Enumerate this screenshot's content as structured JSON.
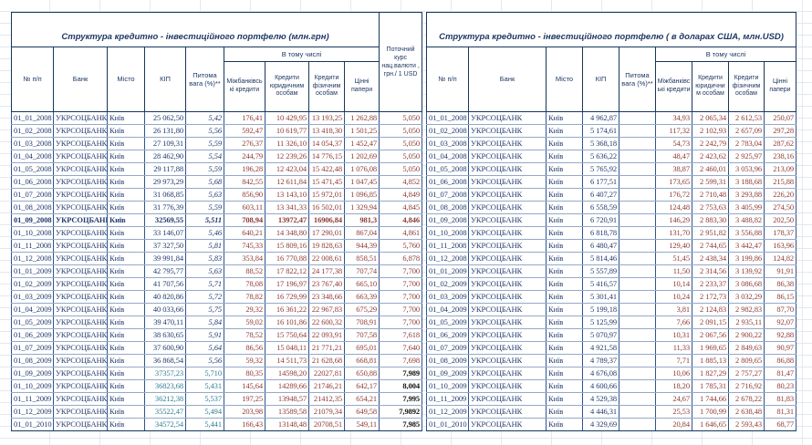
{
  "colors": {
    "text_navy": "#223A6E",
    "text_maroon": "#8E3B35",
    "text_teal": "#2E7F96",
    "border_dark": "#16365C",
    "border_inner": "#2F548E",
    "gridline": "#E3E8F0"
  },
  "uah_table": {
    "title": "Структура кредитно - інвестиційного портфелю (млн.грн)",
    "group_header": "В тому числі",
    "col_headers": [
      "№ п/п",
      "Банк",
      "Місто",
      "КІП",
      "Питома вага (%)**",
      "Міжбанківські кредити",
      "Кредити юридичним особам",
      "Кредити фізичним особам",
      "Цінні папери",
      "Поточний курс нац.валюти , грн./ 1 USD"
    ],
    "rows": [
      {
        "c": [
          "01_01_2008",
          "УКРСОЦБАНК",
          "Київ",
          "25 062,50",
          "5,42",
          "176,41",
          "10 429,95",
          "13 193,25",
          "1 262,88",
          "5,050"
        ],
        "style": "n"
      },
      {
        "c": [
          "01_02_2008",
          "УКРСОЦБАНК",
          "Київ",
          "26 131,80",
          "5,56",
          "592,47",
          "10 619,77",
          "13 418,30",
          "1 501,25",
          "5,050"
        ],
        "style": "n"
      },
      {
        "c": [
          "01_03_2008",
          "УКРСОЦБАНК",
          "Київ",
          "27 109,31",
          "5,59",
          "276,37",
          "11 326,10",
          "14 054,37",
          "1 452,47",
          "5,050"
        ],
        "style": "n"
      },
      {
        "c": [
          "01_04_2008",
          "УКРСОЦБАНК",
          "Київ",
          "28 462,90",
          "5,54",
          "244,79",
          "12 239,26",
          "14 776,15",
          "1 202,69",
          "5,050"
        ],
        "style": "n"
      },
      {
        "c": [
          "01_05_2008",
          "УКРСОЦБАНК",
          "Київ",
          "29 117,88",
          "5,59",
          "196,28",
          "12 423,04",
          "15 422,48",
          "1 076,08",
          "5,050"
        ],
        "style": "n"
      },
      {
        "c": [
          "01_06_2008",
          "УКРСОЦБАНК",
          "Київ",
          "29 973,29",
          "5,68",
          "842,55",
          "12 611,84",
          "15 471,45",
          "1 047,45",
          "4,852"
        ],
        "style": "n"
      },
      {
        "c": [
          "01_07_2008",
          "УКРСОЦБАНК",
          "Київ",
          "31 068,85",
          "5,63",
          "856,90",
          "13 143,10",
          "15 972,01",
          "1 096,85",
          "4,849"
        ],
        "style": "n"
      },
      {
        "c": [
          "01_08_2008",
          "УКРСОЦБАНК",
          "Київ",
          "31 776,39",
          "5,59",
          "603,11",
          "13 341,33",
          "16 502,01",
          "1 329,94",
          "4,845"
        ],
        "style": "n"
      },
      {
        "c": [
          "01_09_2008",
          "УКРСОЦБАНК",
          "Київ",
          "32569,55",
          "5,511",
          "708,94",
          "13972,47",
          "16906,84",
          "981,3",
          "4,846"
        ],
        "style": "bold"
      },
      {
        "c": [
          "01_10_2008",
          "УКРСОЦБАНК",
          "Київ",
          "33 146,07",
          "5,46",
          "640,21",
          "14 348,80",
          "17 290,01",
          "867,04",
          "4,861"
        ],
        "style": "n"
      },
      {
        "c": [
          "01_11_2008",
          "УКРСОЦБАНК",
          "Київ",
          "37 327,50",
          "5,81",
          "745,33",
          "15 809,16",
          "19 828,63",
          "944,39",
          "5,760"
        ],
        "style": "n"
      },
      {
        "c": [
          "01_12_2008",
          "УКРСОЦБАНК",
          "Київ",
          "39 991,84",
          "5,83",
          "353,84",
          "16 770,88",
          "22 008,61",
          "858,51",
          "6,878"
        ],
        "style": "n"
      },
      {
        "c": [
          "01_01_2009",
          "УКРСОЦБАНК",
          "Київ",
          "42 795,77",
          "5,63",
          "88,52",
          "17 822,12",
          "24 177,38",
          "707,74",
          "7,700"
        ],
        "style": "n"
      },
      {
        "c": [
          "01_02_2009",
          "УКРСОЦБАНК",
          "Київ",
          "41 707,56",
          "5,71",
          "78,08",
          "17 196,97",
          "23 767,40",
          "665,10",
          "7,700"
        ],
        "style": "n"
      },
      {
        "c": [
          "01_03_2009",
          "УКРСОЦБАНК",
          "Київ",
          "40 820,86",
          "5,72",
          "78,82",
          "16 729,99",
          "23 348,66",
          "663,39",
          "7,700"
        ],
        "style": "n"
      },
      {
        "c": [
          "01_04_2009",
          "УКРСОЦБАНК",
          "Київ",
          "40 033,66",
          "5,75",
          "29,32",
          "16 361,22",
          "22 967,83",
          "675,29",
          "7,700"
        ],
        "style": "n"
      },
      {
        "c": [
          "01_05_2009",
          "УКРСОЦБАНК",
          "Київ",
          "39 470,11",
          "5,84",
          "59,02",
          "16 101,86",
          "22 600,32",
          "708,91",
          "7,700"
        ],
        "style": "n"
      },
      {
        "c": [
          "01_06_2009",
          "УКРСОЦБАНК",
          "Київ",
          "38 630,65",
          "5,91",
          "78,52",
          "15 750,64",
          "22 093,91",
          "707,58",
          "7,618"
        ],
        "style": "n"
      },
      {
        "c": [
          "01_07_2009",
          "УКРСОЦБАНК",
          "Київ",
          "37 600,90",
          "5,64",
          "86,56",
          "15 048,11",
          "21 771,21",
          "695,01",
          "7,640"
        ],
        "style": "n"
      },
      {
        "c": [
          "01_08_2009",
          "УКРСОЦБАНК",
          "Київ",
          "36 868,54",
          "5,56",
          "59,32",
          "14 511,73",
          "21 628,68",
          "668,81",
          "7,698"
        ],
        "style": "n"
      },
      {
        "c": [
          "01_09_2009",
          "УКРСОЦБАНК",
          "Київ",
          "37357,23",
          "5,710",
          "80,35",
          "14598,20",
          "22027,81",
          "650,88",
          "7,989"
        ],
        "style": "teal"
      },
      {
        "c": [
          "01_10_2009",
          "УКРСОЦБАНК",
          "Київ",
          "36823,68",
          "5,431",
          "145,64",
          "14289,66",
          "21746,21",
          "642,17",
          "8,004"
        ],
        "style": "teal"
      },
      {
        "c": [
          "01_11_2009",
          "УКРСОЦБАНК",
          "Київ",
          "36212,38",
          "5,537",
          "197,25",
          "13948,57",
          "21412,35",
          "654,21",
          "7,995"
        ],
        "style": "teal"
      },
      {
        "c": [
          "01_12_2009",
          "УКРСОЦБАНК",
          "Київ",
          "35522,47",
          "5,494",
          "203,98",
          "13589,58",
          "21079,34",
          "649,58",
          "7,9892"
        ],
        "style": "teal"
      },
      {
        "c": [
          "01_01_2010",
          "УКРСОЦБАНК",
          "Київ",
          "34572,54",
          "5,441",
          "166,43",
          "13148,48",
          "20708,51",
          "549,11",
          "7,985"
        ],
        "style": "teal"
      }
    ]
  },
  "usd_table": {
    "title": "Структура кредитно - інвестиційного портфелю ( в доларах США, млн.USD)",
    "group_header": "В тому числі",
    "col_headers": [
      "№ п/п",
      "Банк",
      "Місто",
      "КІП",
      "Питома вага (%)**",
      "Міжбанківські кредити",
      "Кредити юридичним особам",
      "Кредити фізичним особам",
      "Цінні папери"
    ],
    "rows": [
      {
        "c": [
          "01_01_2008",
          "УКРСОЦБАНК",
          "Київ",
          "4 962,87",
          "",
          "34,93",
          "2 065,34",
          "2 612,53",
          "250,07"
        ],
        "style": "n"
      },
      {
        "c": [
          "01_02_2008",
          "УКРСОЦБАНК",
          "Київ",
          "5 174,61",
          "",
          "117,32",
          "2 102,93",
          "2 657,09",
          "297,28"
        ],
        "style": "n"
      },
      {
        "c": [
          "01_03_2008",
          "УКРСОЦБАНК",
          "Київ",
          "5 368,18",
          "",
          "54,73",
          "2 242,79",
          "2 783,04",
          "287,62"
        ],
        "style": "n"
      },
      {
        "c": [
          "01_04_2008",
          "УКРСОЦБАНК",
          "Київ",
          "5 636,22",
          "",
          "48,47",
          "2 423,62",
          "2 925,97",
          "238,16"
        ],
        "style": "n"
      },
      {
        "c": [
          "01_05_2008",
          "УКРСОЦБАНК",
          "Київ",
          "5 765,92",
          "",
          "38,87",
          "2 460,01",
          "3 053,96",
          "213,09"
        ],
        "style": "n"
      },
      {
        "c": [
          "01_06_2008",
          "УКРСОЦБАНК",
          "Київ",
          "6 177,51",
          "",
          "173,65",
          "2 599,31",
          "3 188,68",
          "215,88"
        ],
        "style": "n"
      },
      {
        "c": [
          "01_07_2008",
          "УКРСОЦБАНК",
          "Київ",
          "6 407,27",
          "",
          "176,72",
          "2 710,48",
          "3 293,88",
          "226,20"
        ],
        "style": "n"
      },
      {
        "c": [
          "01_08_2008",
          "УКРСОЦБАНК",
          "Київ",
          "6 558,59",
          "",
          "124,48",
          "2 753,63",
          "3 405,99",
          "274,50"
        ],
        "style": "n"
      },
      {
        "c": [
          "01_09_2008",
          "УКРСОЦБАНК",
          "Київ",
          "6 720,91",
          "",
          "146,29",
          "2 883,30",
          "3 488,82",
          "202,50"
        ],
        "style": "n"
      },
      {
        "c": [
          "01_10_2008",
          "УКРСОЦБАНК",
          "Київ",
          "6 818,78",
          "",
          "131,70",
          "2 951,82",
          "3 556,88",
          "178,37"
        ],
        "style": "n"
      },
      {
        "c": [
          "01_11_2008",
          "УКРСОЦБАНК",
          "Київ",
          "6 480,47",
          "",
          "129,40",
          "2 744,65",
          "3 442,47",
          "163,96"
        ],
        "style": "n"
      },
      {
        "c": [
          "01_12_2008",
          "УКРСОЦБАНК",
          "Київ",
          "5 814,46",
          "",
          "51,45",
          "2 438,34",
          "3 199,86",
          "124,82"
        ],
        "style": "n"
      },
      {
        "c": [
          "01_01_2009",
          "УКРСОЦБАНК",
          "Київ",
          "5 557,89",
          "",
          "11,50",
          "2 314,56",
          "3 139,92",
          "91,91"
        ],
        "style": "n"
      },
      {
        "c": [
          "01_02_2009",
          "УКРСОЦБАНК",
          "Київ",
          "5 416,57",
          "",
          "10,14",
          "2 233,37",
          "3 086,68",
          "86,38"
        ],
        "style": "n"
      },
      {
        "c": [
          "01_03_2009",
          "УКРСОЦБАНК",
          "Київ",
          "5 301,41",
          "",
          "10,24",
          "2 172,73",
          "3 032,29",
          "86,15"
        ],
        "style": "n"
      },
      {
        "c": [
          "01_04_2009",
          "УКРСОЦБАНК",
          "Київ",
          "5 199,18",
          "",
          "3,81",
          "2 124,83",
          "2 982,83",
          "87,70"
        ],
        "style": "n"
      },
      {
        "c": [
          "01_05_2009",
          "УКРСОЦБАНК",
          "Київ",
          "5 125,99",
          "",
          "7,66",
          "2 091,15",
          "2 935,11",
          "92,07"
        ],
        "style": "n"
      },
      {
        "c": [
          "01_06_2009",
          "УКРСОЦБАНК",
          "Київ",
          "5 070,97",
          "",
          "10,31",
          "2 067,56",
          "2 900,22",
          "92,88"
        ],
        "style": "n"
      },
      {
        "c": [
          "01_07_2009",
          "УКРСОЦБАНК",
          "Київ",
          "4 921,58",
          "",
          "11,33",
          "1 969,65",
          "2 849,63",
          "90,97"
        ],
        "style": "n"
      },
      {
        "c": [
          "01_08_2009",
          "УКРСОЦБАНК",
          "Київ",
          "4 789,37",
          "",
          "7,71",
          "1 885,13",
          "2 809,65",
          "86,88"
        ],
        "style": "n"
      },
      {
        "c": [
          "01_09_2009",
          "УКРСОЦБАНК",
          "Київ",
          "4 676,08",
          "",
          "10,06",
          "1 827,29",
          "2 757,27",
          "81,47"
        ],
        "style": "n"
      },
      {
        "c": [
          "01_10_2009",
          "УКРСОЦБАНК",
          "Київ",
          "4 600,66",
          "",
          "18,20",
          "1 785,31",
          "2 716,92",
          "80,23"
        ],
        "style": "n"
      },
      {
        "c": [
          "01_11_2009",
          "УКРСОЦБАНК",
          "Київ",
          "4 529,38",
          "",
          "24,67",
          "1 744,66",
          "2 678,22",
          "81,83"
        ],
        "style": "n"
      },
      {
        "c": [
          "01_12_2009",
          "УКРСОЦБАНК",
          "Київ",
          "4 446,31",
          "",
          "25,53",
          "1 700,99",
          "2 638,48",
          "81,31"
        ],
        "style": "n"
      },
      {
        "c": [
          "01_01_2010",
          "УКРСОЦБАНК",
          "Київ",
          "4 329,69",
          "",
          "20,84",
          "1 646,65",
          "2 593,43",
          "68,77"
        ],
        "style": "n"
      }
    ]
  }
}
